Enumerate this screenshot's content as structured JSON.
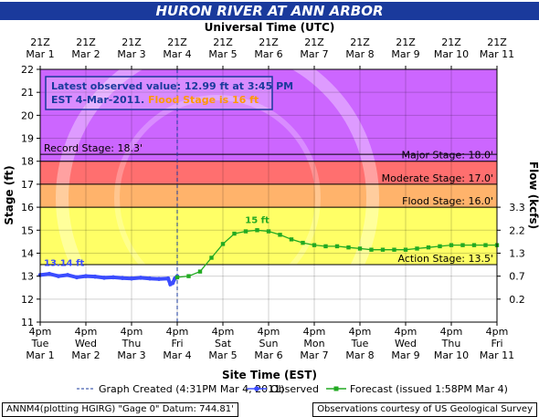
{
  "title": "HURON RIVER AT ANN ARBOR",
  "colors": {
    "title_bg": "#1a3a9c",
    "record": "#cc66ff",
    "major": "#ff6f6f",
    "moderate": "#ffb36b",
    "flood": "#ffff66",
    "action": "#ffff66",
    "observed": "#3b4cff",
    "forecast": "#22aa22"
  },
  "top_axis": {
    "title": "Universal Time (UTC)",
    "labels": [
      [
        "21Z",
        "Mar 1"
      ],
      [
        "21Z",
        "Mar 2"
      ],
      [
        "21Z",
        "Mar 3"
      ],
      [
        "21Z",
        "Mar 4"
      ],
      [
        "21Z",
        "Mar 5"
      ],
      [
        "21Z",
        "Mar 6"
      ],
      [
        "21Z",
        "Mar 7"
      ],
      [
        "21Z",
        "Mar 8"
      ],
      [
        "21Z",
        "Mar 9"
      ],
      [
        "21Z",
        "Mar 10"
      ],
      [
        "21Z",
        "Mar 11"
      ]
    ]
  },
  "bottom_axis": {
    "title": "Site Time (EST)",
    "labels": [
      [
        "4pm",
        "Tue",
        "Mar 1"
      ],
      [
        "4pm",
        "Wed",
        "Mar 2"
      ],
      [
        "4pm",
        "Thu",
        "Mar 3"
      ],
      [
        "4pm",
        "Fri",
        "Mar 4"
      ],
      [
        "4pm",
        "Sat",
        "Mar 5"
      ],
      [
        "4pm",
        "Sun",
        "Mar 6"
      ],
      [
        "4pm",
        "Mon",
        "Mar 7"
      ],
      [
        "4pm",
        "Tue",
        "Mar 8"
      ],
      [
        "4pm",
        "Wed",
        "Mar 9"
      ],
      [
        "4pm",
        "Thu",
        "Mar 10"
      ],
      [
        "4pm",
        "Fri",
        "Mar 11"
      ]
    ]
  },
  "left_axis": {
    "title": "Stage (ft)"
  },
  "right_axis": {
    "title": "Flow (kcfs)"
  },
  "info_box": {
    "line1": "Latest observed value: 12.99 ft at 3:45 PM",
    "line2a": "EST 4-Mar-2011. ",
    "line2b": "Flood Stage is 16 ft"
  },
  "legend": {
    "created": "Graph Created (4:31PM Mar 4, 2011)",
    "observed": "Observed",
    "forecast": "Forecast (issued 1:58PM Mar 4)"
  },
  "footer": {
    "left": "ANNM4(plotting HGIRG) \"Gage 0\" Datum: 744.81'",
    "right": "Observations courtesy of US Geological Survey"
  },
  "chart_data": {
    "type": "line",
    "x_unit": "days since Mar 1 4pm EST",
    "ylim": [
      11,
      22
    ],
    "yticks": [
      11,
      12,
      13,
      14,
      15,
      16,
      17,
      18,
      19,
      20,
      21,
      22
    ],
    "right_ticks": [
      {
        "label": "0.2",
        "stage": 12.0
      },
      {
        "label": "0.7",
        "stage": 13.0
      },
      {
        "label": "1.3",
        "stage": 14.0
      },
      {
        "label": "2.2",
        "stage": 15.0
      },
      {
        "label": "3.3",
        "stage": 16.0
      }
    ],
    "stages": [
      {
        "name": "Record Stage",
        "label": "Record Stage: 18.3'",
        "value": 18.3
      },
      {
        "name": "Major Stage",
        "label": "Major Stage: 18.0'",
        "value": 18.0
      },
      {
        "name": "Moderate Stage",
        "label": "Moderate Stage: 17.0'",
        "value": 17.0
      },
      {
        "name": "Flood Stage",
        "label": "Flood Stage: 16.0'",
        "value": 16.0
      },
      {
        "name": "Action Stage",
        "label": "Action Stage: 13.5'",
        "value": 13.5
      }
    ],
    "graph_created_x": 3.0,
    "observed_start_label": "13.14 ft",
    "crest_label": "15 ft",
    "series": [
      {
        "name": "Observed",
        "x": [
          0.0,
          0.2,
          0.4,
          0.6,
          0.8,
          1.0,
          1.2,
          1.4,
          1.6,
          1.8,
          2.0,
          2.2,
          2.4,
          2.6,
          2.8,
          2.85,
          2.9,
          2.95,
          3.0
        ],
        "y": [
          13.05,
          13.1,
          13.0,
          13.05,
          12.95,
          13.0,
          12.98,
          12.93,
          12.95,
          12.92,
          12.9,
          12.93,
          12.9,
          12.88,
          12.9,
          12.65,
          12.7,
          12.9,
          12.99
        ]
      },
      {
        "name": "Forecast",
        "x": [
          3.0,
          3.25,
          3.5,
          3.75,
          4.0,
          4.25,
          4.5,
          4.75,
          5.0,
          5.25,
          5.5,
          5.75,
          6.0,
          6.25,
          6.5,
          6.75,
          7.0,
          7.25,
          7.5,
          7.75,
          8.0,
          8.25,
          8.5,
          8.75,
          9.0,
          9.25,
          9.5,
          9.75,
          10.0
        ],
        "y": [
          12.95,
          13.0,
          13.2,
          13.8,
          14.4,
          14.85,
          14.95,
          15.0,
          14.95,
          14.8,
          14.6,
          14.45,
          14.35,
          14.3,
          14.3,
          14.25,
          14.2,
          14.15,
          14.15,
          14.15,
          14.15,
          14.2,
          14.25,
          14.3,
          14.35,
          14.35,
          14.35,
          14.35,
          14.35
        ]
      }
    ]
  }
}
